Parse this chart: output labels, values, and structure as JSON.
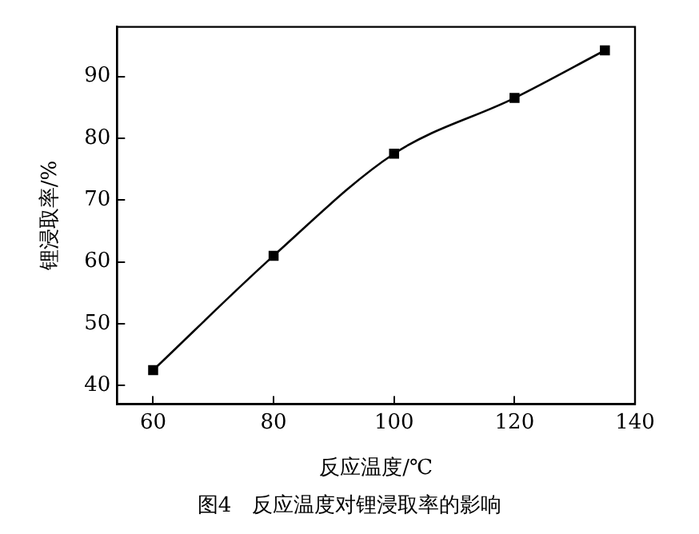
{
  "chart_data": {
    "type": "line",
    "xlabel": "反应温度/℃",
    "ylabel": "锂浸取率/%",
    "x": [
      60,
      80,
      100,
      120,
      135
    ],
    "series": [
      {
        "color": "#000000",
        "values": [
          42.5,
          61,
          77.5,
          86.5,
          94.2
        ]
      }
    ],
    "xlim": [
      54,
      140
    ],
    "xticks": [
      60,
      80,
      100,
      120,
      140
    ],
    "ylim": [
      37,
      98
    ],
    "yticks": [
      40,
      50,
      60,
      70,
      80,
      90
    ],
    "marker": "square",
    "line_style": "solid",
    "grid": false,
    "legend": false,
    "annotations": [
      "图4　反应温度对锂浸取率的影响"
    ]
  }
}
